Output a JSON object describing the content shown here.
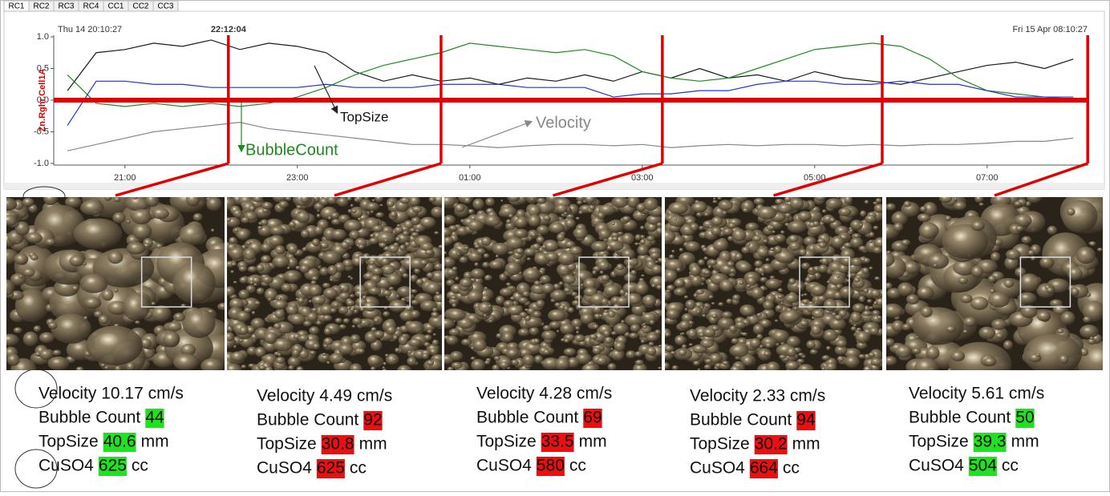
{
  "tabs": [
    "RC1",
    "RC2",
    "RC3",
    "RC4",
    "CC1",
    "CC2",
    "CC3"
  ],
  "chart_data": {
    "type": "line",
    "y_label": "Zn.Rghr.Cell1A",
    "start_label": "Thu 14 20:10:27",
    "end_label": "Fri 15 Apr 08:10:27",
    "cursor_label": "22:12:04",
    "x": [
      "20:20",
      "20:40",
      "21:00",
      "21:20",
      "21:40",
      "22:00",
      "22:20",
      "22:40",
      "23:00",
      "23:20",
      "23:40",
      "00:00",
      "00:20",
      "00:40",
      "01:00",
      "01:20",
      "01:40",
      "02:00",
      "02:20",
      "02:40",
      "03:00",
      "03:20",
      "03:40",
      "04:00",
      "04:20",
      "04:40",
      "05:00",
      "05:20",
      "05:40",
      "06:00",
      "06:20",
      "06:40",
      "07:00",
      "07:20",
      "07:40",
      "08:00"
    ],
    "xlim": [
      "20:10:27",
      "08:10:27"
    ],
    "xticks": [
      "21:00",
      "23:00",
      "01:00",
      "03:00",
      "05:00",
      "07:00"
    ],
    "ylim": [
      -1,
      1
    ],
    "yticks": [
      {
        "value": 1,
        "label": "1.0"
      },
      0.5,
      {
        "value": 0,
        "label": "0.0"
      },
      -0.5,
      {
        "value": -1,
        "label": "-1.0"
      }
    ],
    "series": [
      {
        "name": "TopSize",
        "color": "#1a1a1a",
        "values": [
          0.15,
          0.75,
          0.8,
          0.9,
          0.85,
          0.95,
          0.8,
          0.9,
          0.85,
          0.75,
          0.45,
          0.3,
          0.4,
          0.3,
          0.35,
          0.25,
          0.35,
          0.3,
          0.4,
          0.3,
          0.45,
          0.35,
          0.5,
          0.35,
          0.4,
          0.3,
          0.45,
          0.35,
          0.3,
          0.25,
          0.35,
          0.45,
          0.55,
          0.6,
          0.5,
          0.65
        ]
      },
      {
        "name": "BubbleCount",
        "color": "#1e8a1e",
        "values": [
          0.4,
          -0.05,
          -0.1,
          -0.05,
          -0.1,
          -0.05,
          -0.1,
          -0.05,
          0.05,
          0.2,
          0.4,
          0.55,
          0.65,
          0.75,
          0.9,
          0.85,
          0.8,
          0.75,
          0.8,
          0.7,
          0.45,
          0.35,
          0.3,
          0.35,
          0.5,
          0.65,
          0.8,
          0.85,
          0.9,
          0.85,
          0.65,
          0.35,
          0.15,
          0.1,
          0.05,
          0.02
        ]
      },
      {
        "color": "#2233cc",
        "values": [
          -0.4,
          0.3,
          0.3,
          0.25,
          0.25,
          0.2,
          0.2,
          0.2,
          0.2,
          0.25,
          0.2,
          0.2,
          0.2,
          0.25,
          0.25,
          0.25,
          0.2,
          0.2,
          0.2,
          0.05,
          0.1,
          0.1,
          0.15,
          0.15,
          0.25,
          0.3,
          0.3,
          0.25,
          0.25,
          0.3,
          0.25,
          0.25,
          0.15,
          0.05,
          0.05,
          0.05
        ]
      },
      {
        "name": "Velocity",
        "color": "#888888",
        "values": [
          -0.8,
          -0.7,
          -0.6,
          -0.5,
          -0.45,
          -0.4,
          -0.35,
          -0.45,
          -0.5,
          -0.55,
          -0.6,
          -0.65,
          -0.7,
          -0.7,
          -0.72,
          -0.75,
          -0.72,
          -0.7,
          -0.7,
          -0.72,
          -0.7,
          -0.75,
          -0.72,
          -0.7,
          -0.72,
          -0.7,
          -0.7,
          -0.72,
          -0.7,
          -0.72,
          -0.7,
          -0.7,
          -0.68,
          -0.65,
          -0.65,
          -0.6
        ]
      }
    ],
    "snapshot_times": [
      "22:12",
      "00:40",
      "03:14",
      "05:47",
      "08:10"
    ],
    "snapshot_color": "#e00000"
  },
  "labels": {
    "bubble_count": "Bubble Count",
    "top_size": "TopSize",
    "top_size_unit": "mm",
    "cuso4": "CuSO4",
    "cuso4_unit": "cc"
  },
  "panels": [
    {
      "velocity": "Velocity 10.17 cm/s",
      "bubble_count": 44,
      "bubble_color": "#22e022",
      "top_size": 40.6,
      "top_size_color": "#22e022",
      "cuso4": 625,
      "cuso4_color": "#22e022"
    },
    {
      "velocity": "Velocity 4.49 cm/s",
      "bubble_count": 92,
      "bubble_color": "#e81010",
      "top_size": 30.8,
      "top_size_color": "#e81010",
      "cuso4": 625,
      "cuso4_color": "#e81010"
    },
    {
      "velocity": "Velocity 4.28 cm/s",
      "bubble_count": 69,
      "bubble_color": "#e81010",
      "top_size": 33.5,
      "top_size_color": "#e81010",
      "cuso4": 580,
      "cuso4_color": "#e81010"
    },
    {
      "velocity": "Velocity 2.33 cm/s",
      "bubble_count": 94,
      "bubble_color": "#e81010",
      "top_size": 30.2,
      "top_size_color": "#e81010",
      "cuso4": 664,
      "cuso4_color": "#e81010"
    },
    {
      "velocity": "Velocity 5.61 cm/s",
      "bubble_count": 50,
      "bubble_color": "#22e022",
      "top_size": 39.3,
      "top_size_color": "#22e022",
      "cuso4": 504,
      "cuso4_color": "#22e022"
    }
  ]
}
